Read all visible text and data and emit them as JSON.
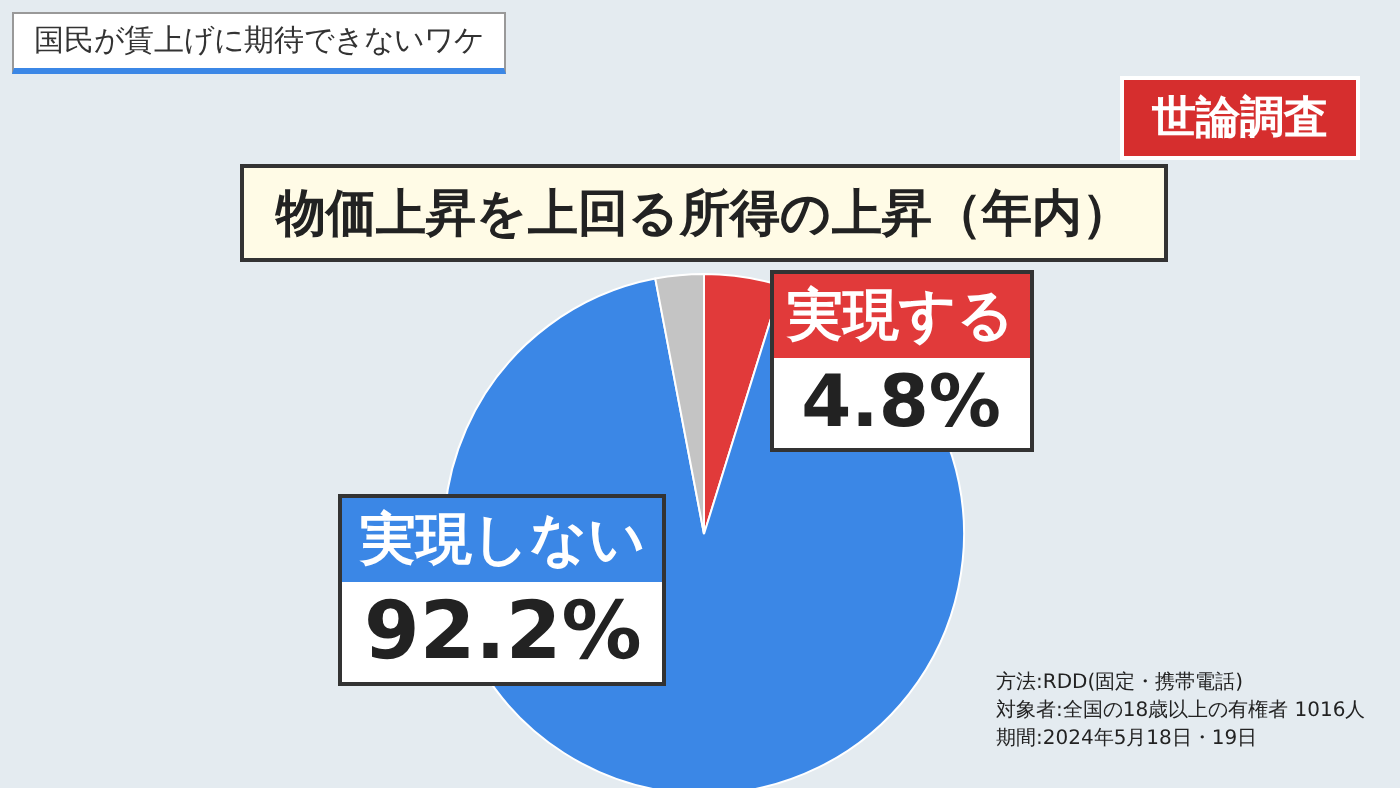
{
  "chart_data": {
    "type": "pie",
    "title": "物価上昇を上回る所得の上昇（年内）",
    "subtitle": "国民が賃上げに期待できないワケ",
    "categories": [
      "実現する",
      "実現しない",
      null
    ],
    "values": [
      4.8,
      92.2,
      3.0
    ],
    "colors": [
      "#e13a3a",
      "#3b87e6",
      "#c4c4c4"
    ],
    "value_labels": [
      "4.8%",
      "92.2%",
      null
    ],
    "annotations": [
      "世論調査",
      "方法:RDD(固定・携帯電話)",
      "対象者:全国の18歳以上の有権者 1016人",
      "期間:2024年5月18日・19日"
    ]
  }
}
